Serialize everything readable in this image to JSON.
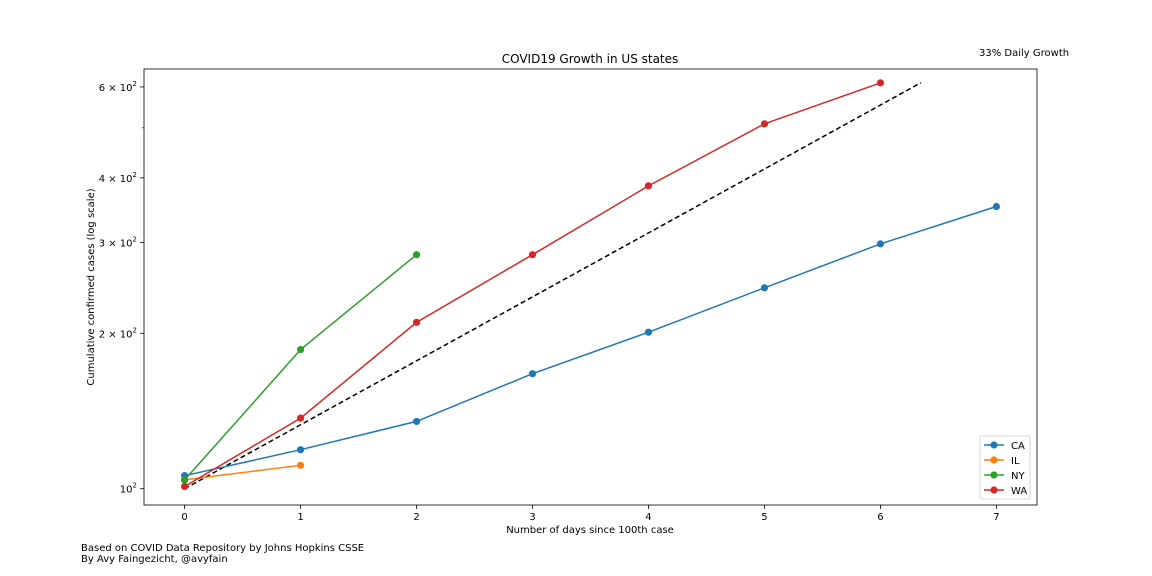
{
  "chart_data": {
    "type": "line",
    "title": "COVID19 Growth in US states",
    "xlabel": "Number of days since 100th case",
    "ylabel": "Cumulative confirmed cases (log scale)",
    "yscale": "log",
    "xlim": [
      -0.35,
      7.35
    ],
    "ylim": [
      93,
      650
    ],
    "xticks": [
      0,
      1,
      2,
      3,
      4,
      5,
      6,
      7
    ],
    "yticks": [
      {
        "value": 100,
        "base": "10",
        "exp": "2"
      },
      {
        "value": 200,
        "base": "2 × 10",
        "exp": "2"
      },
      {
        "value": 300,
        "base": "3 × 10",
        "exp": "2"
      },
      {
        "value": 400,
        "base": "4 × 10",
        "exp": "2"
      },
      {
        "value": 600,
        "base": "6 × 10",
        "exp": "2"
      }
    ],
    "minor_ticks": [
      500
    ],
    "series": [
      {
        "name": "CA",
        "color": "#1f77b4",
        "x": [
          0,
          1,
          2,
          3,
          4,
          5,
          6,
          7
        ],
        "values": [
          106,
          119,
          135,
          167,
          201,
          245,
          298,
          352
        ]
      },
      {
        "name": "IL",
        "color": "#ff7f0e",
        "x": [
          0,
          1
        ],
        "values": [
          104,
          111
        ]
      },
      {
        "name": "NY",
        "color": "#2ca02c",
        "x": [
          0,
          1,
          2
        ],
        "values": [
          104,
          186,
          284
        ]
      },
      {
        "name": "WA",
        "color": "#d62728",
        "x": [
          0,
          1,
          2,
          3,
          4,
          5,
          6
        ],
        "values": [
          101,
          137,
          210,
          284,
          386,
          509,
          611
        ]
      }
    ],
    "reference_line": {
      "label": "33% Daily Growth",
      "color": "#000000",
      "style": "dashed",
      "start": 100,
      "daily_growth": 0.33,
      "x": [
        0,
        6.35
      ]
    },
    "legend_position": "lower right",
    "grid": false
  },
  "credits": {
    "line1": "Based on COVID Data Repository by Johns Hopkins CSSE",
    "line2": "By Avy Faingezicht, @avyfain"
  }
}
